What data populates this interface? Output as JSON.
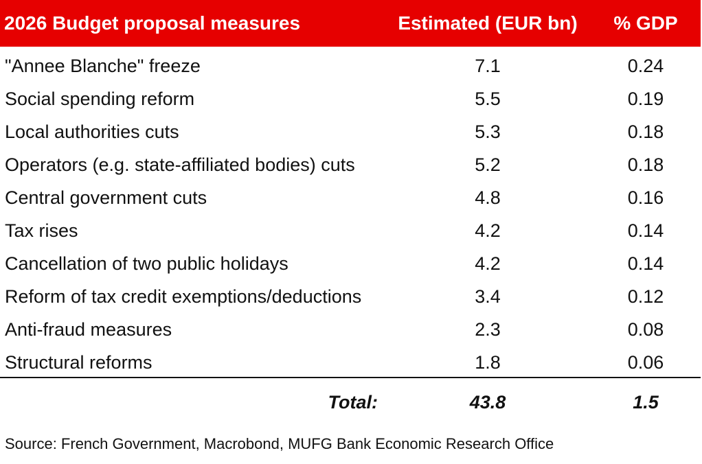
{
  "table": {
    "headers": [
      "2026 Budget proposal measures",
      "Estimated (EUR bn)",
      "% GDP"
    ],
    "rows": [
      {
        "measure": "\"Annee Blanche\" freeze",
        "estimated": "7.1",
        "gdp": "0.24"
      },
      {
        "measure": "Social spending reform",
        "estimated": "5.5",
        "gdp": "0.19"
      },
      {
        "measure": "Local authorities cuts",
        "estimated": "5.3",
        "gdp": "0.18"
      },
      {
        "measure": "Operators (e.g. state-affiliated bodies) cuts",
        "estimated": "5.2",
        "gdp": "0.18"
      },
      {
        "measure": "Central government cuts",
        "estimated": "4.8",
        "gdp": "0.16"
      },
      {
        "measure": "Tax rises",
        "estimated": "4.2",
        "gdp": "0.14"
      },
      {
        "measure": "Cancellation of two public holidays",
        "estimated": "4.2",
        "gdp": "0.14"
      },
      {
        "measure": "Reform of tax credit exemptions/deductions",
        "estimated": "3.4",
        "gdp": "0.12"
      },
      {
        "measure": "Anti-fraud measures",
        "estimated": "2.3",
        "gdp": "0.08"
      },
      {
        "measure": "Structural reforms",
        "estimated": "1.8",
        "gdp": "0.06"
      }
    ],
    "total": {
      "label": "Total:",
      "estimated": "43.8",
      "gdp": "1.5"
    },
    "source": "Source: French Government, Macrobond, MUFG Bank Economic Research Office"
  },
  "colors": {
    "header_bg": "#e60000",
    "header_text": "#ffffff",
    "text": "#111111"
  },
  "chart_data": {
    "type": "table",
    "columns": [
      "2026 Budget proposal measures",
      "Estimated (EUR bn)",
      "% GDP"
    ],
    "rows": [
      [
        "\"Annee Blanche\" freeze",
        7.1,
        0.24
      ],
      [
        "Social spending reform",
        5.5,
        0.19
      ],
      [
        "Local authorities cuts",
        5.3,
        0.18
      ],
      [
        "Operators (e.g. state-affiliated bodies) cuts",
        5.2,
        0.18
      ],
      [
        "Central government cuts",
        4.8,
        0.16
      ],
      [
        "Tax rises",
        4.2,
        0.14
      ],
      [
        "Cancellation of two public holidays",
        4.2,
        0.14
      ],
      [
        "Reform of tax credit exemptions/deductions",
        3.4,
        0.12
      ],
      [
        "Anti-fraud measures",
        2.3,
        0.08
      ],
      [
        "Structural reforms",
        1.8,
        0.06
      ]
    ],
    "total": [
      "Total:",
      43.8,
      1.5
    ],
    "source": "Source: French Government, Macrobond, MUFG Bank Economic Research Office"
  }
}
